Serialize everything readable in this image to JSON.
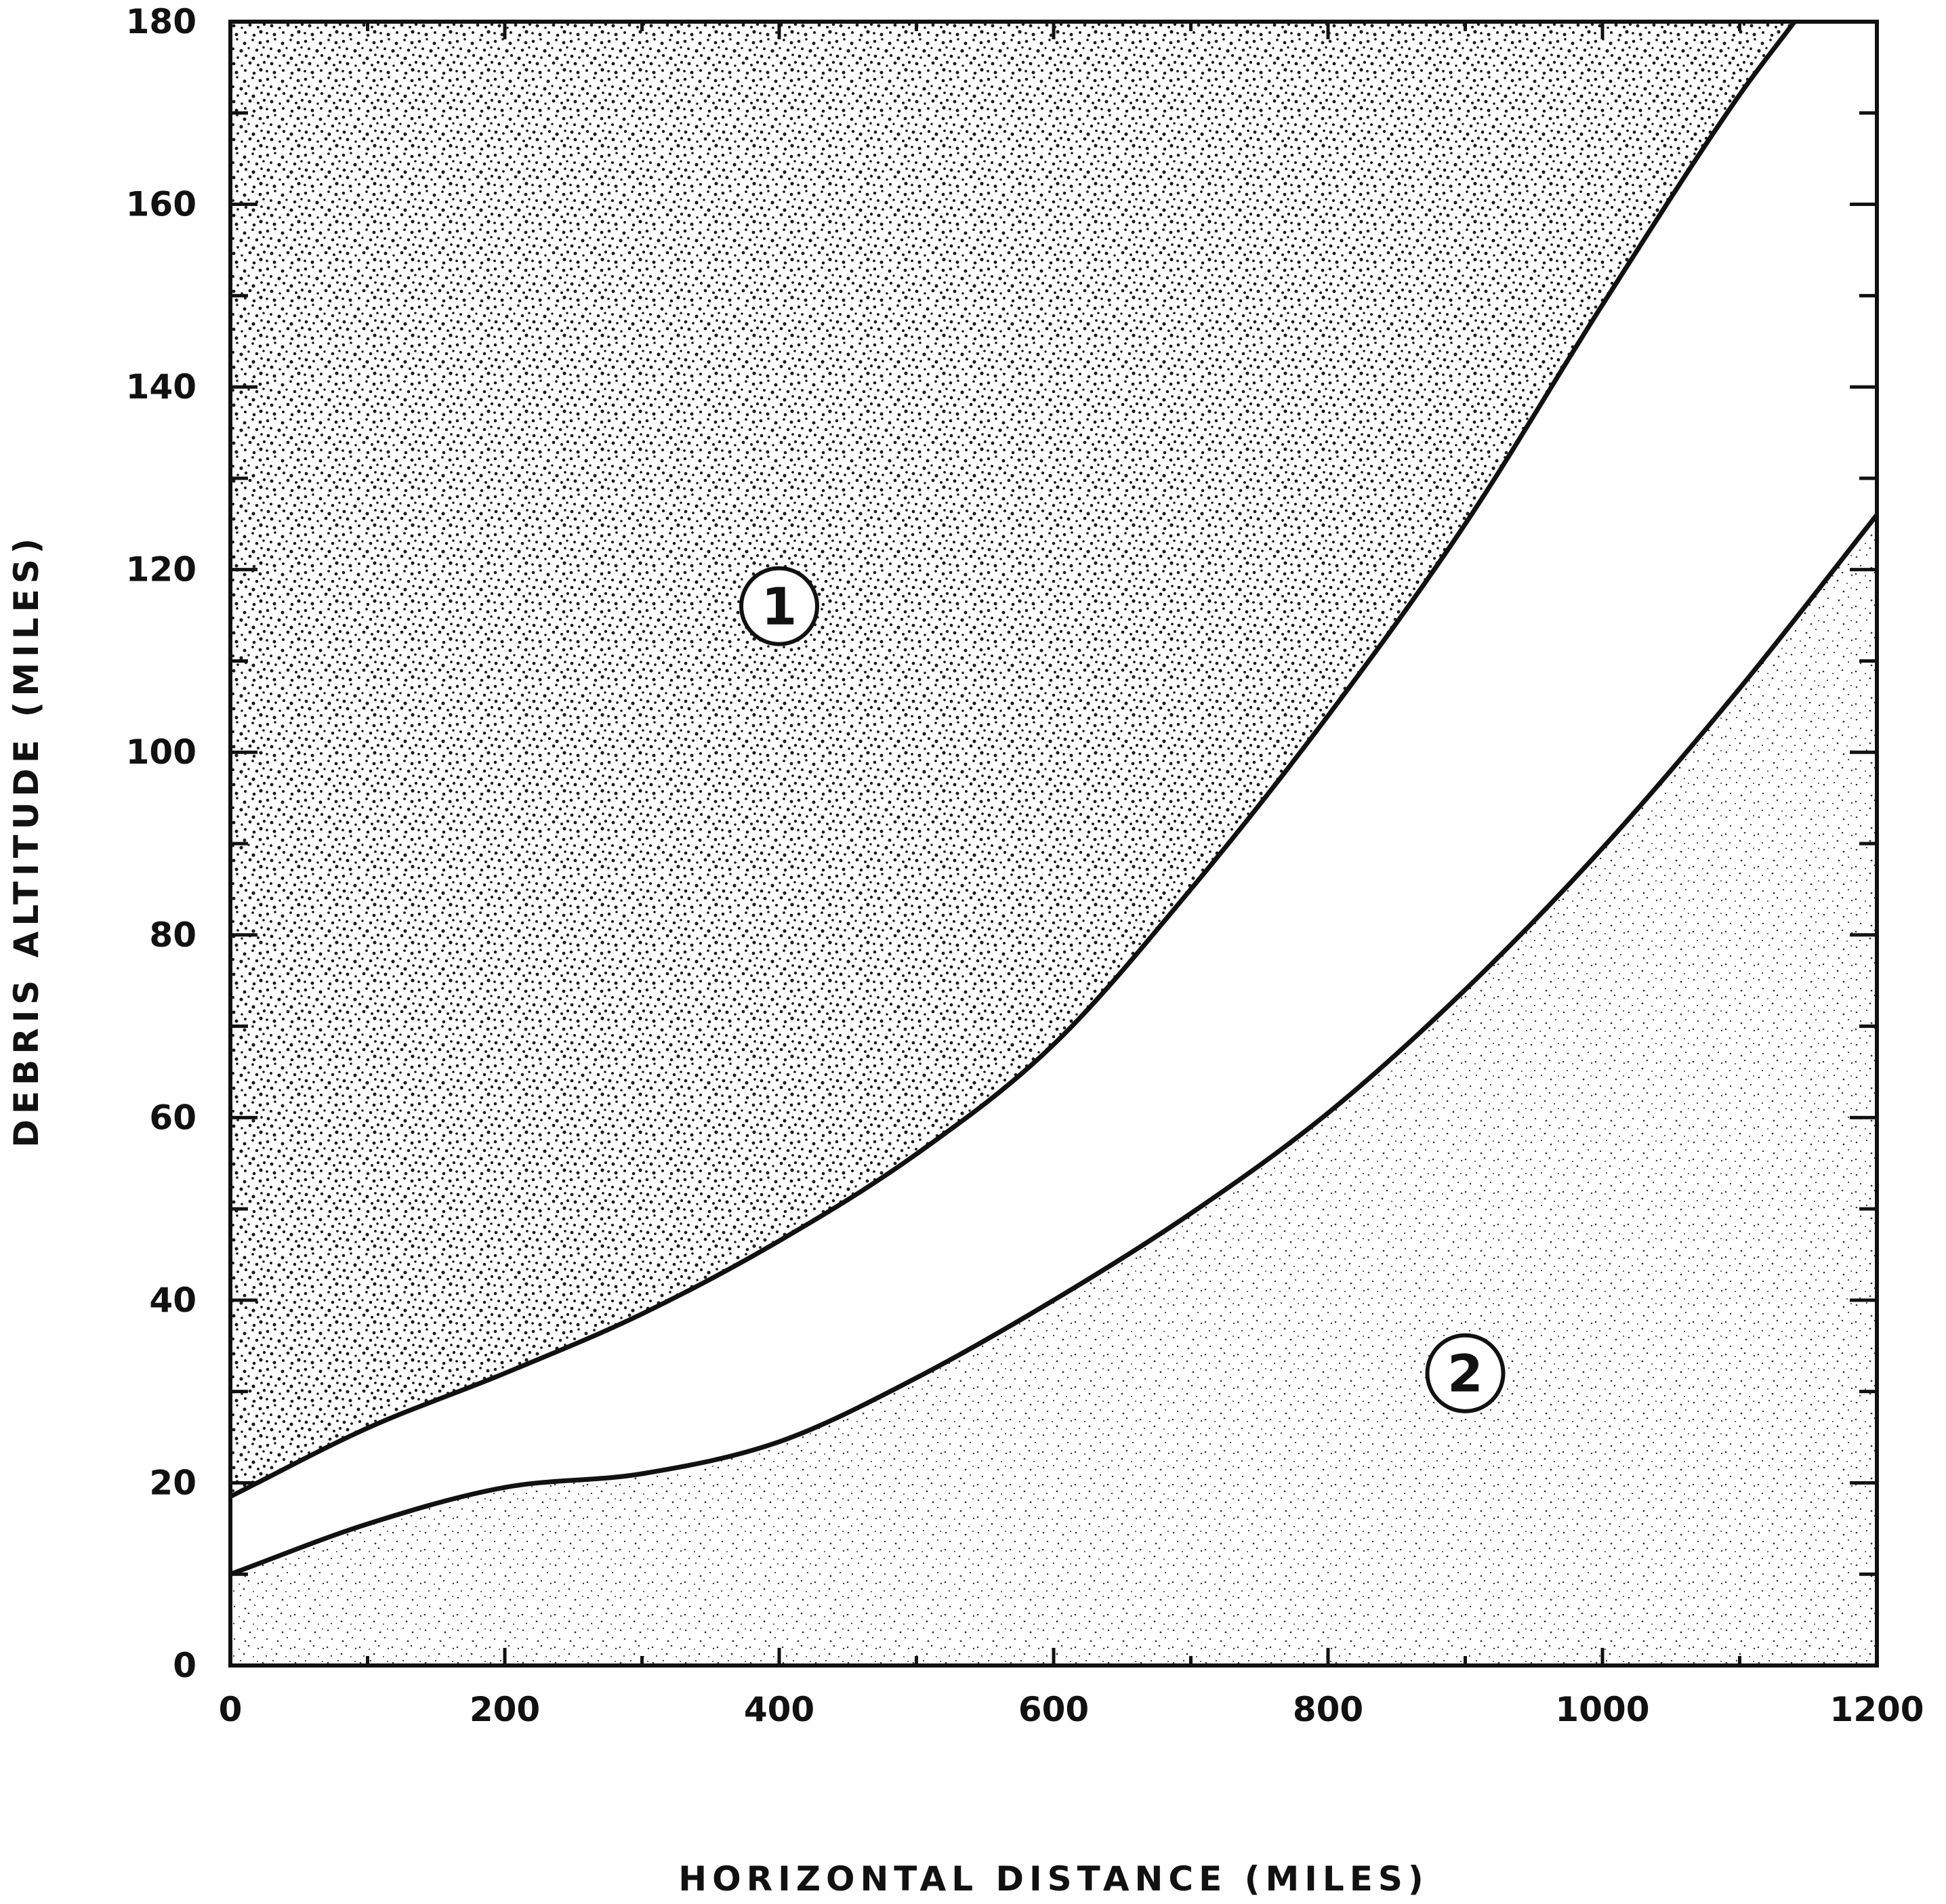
{
  "chart_data": {
    "type": "area",
    "title": "",
    "xlabel": "HORIZONTAL DISTANCE (MILES)",
    "ylabel": "DEBRIS ALTITUDE (MILES)",
    "xlim": [
      0,
      1200
    ],
    "ylim": [
      0,
      180
    ],
    "x_ticks": [
      0,
      200,
      400,
      600,
      800,
      1000,
      1200
    ],
    "y_ticks": [
      0,
      20,
      40,
      60,
      80,
      100,
      120,
      140,
      160,
      180
    ],
    "grid": false,
    "legend": "none",
    "series": [
      {
        "role": "upper-boundary",
        "x": [
          0,
          100,
          200,
          300,
          400,
          500,
          600,
          700,
          800,
          900,
          1000,
          1100,
          1140
        ],
        "values": [
          18.5,
          26,
          32,
          38.5,
          46.5,
          56,
          68,
          85,
          104,
          125,
          149,
          172,
          180
        ]
      },
      {
        "role": "lower-boundary",
        "x": [
          0,
          100,
          200,
          300,
          400,
          500,
          600,
          700,
          800,
          900,
          1000,
          1100,
          1200
        ],
        "values": [
          10,
          15.5,
          19.5,
          21,
          24.5,
          31.5,
          40,
          49.5,
          60.5,
          74,
          89.5,
          107,
          126
        ]
      }
    ],
    "regions": [
      {
        "id": "1",
        "label": "1",
        "x": 400,
        "y": 116,
        "fill": "dense-stipple"
      },
      {
        "id": "2",
        "label": "2",
        "x": 900,
        "y": 32,
        "fill": "light-stipple"
      }
    ],
    "colors": {
      "ink": "#111111",
      "band": "#ffffff",
      "background": "#ffffff"
    }
  }
}
